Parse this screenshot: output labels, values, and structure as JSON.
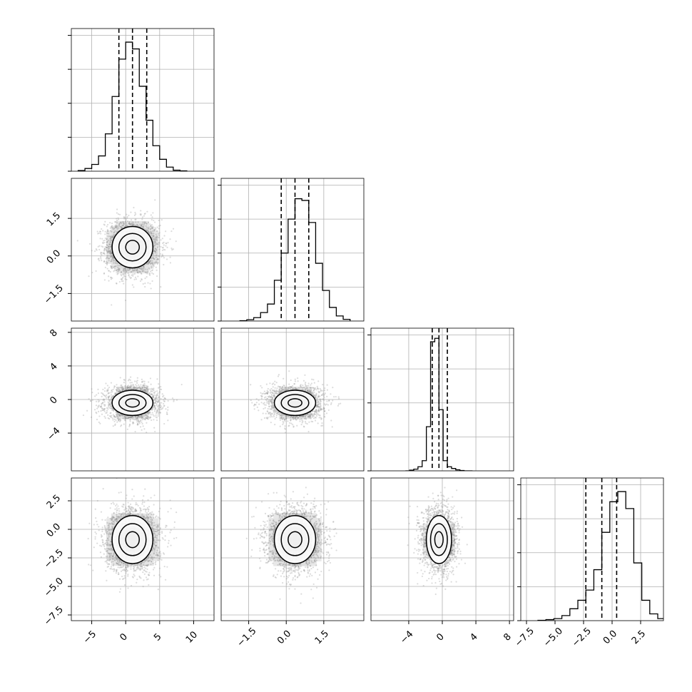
{
  "chart_data": {
    "type": "corner",
    "parameters": [
      {
        "range": [
          -8,
          13
        ],
        "ticks": [
          -5,
          0,
          5,
          10
        ],
        "tick_labels": [
          "−5",
          "0",
          "5",
          "10"
        ],
        "mean": 1.0,
        "sd": 2.0,
        "quantiles": [
          -1.0,
          1.0,
          3.1
        ],
        "hist_peak": 3.8,
        "hist_counts": [
          0.02,
          0.08,
          0.2,
          0.45,
          1.1,
          2.2,
          3.3,
          3.8,
          3.6,
          2.5,
          1.5,
          0.75,
          0.35,
          0.12,
          0.03,
          0.01
        ]
      },
      {
        "range": [
          -2.6,
          3.1
        ],
        "ticks": [
          -1.5,
          0.0,
          1.5
        ],
        "tick_labels": [
          "−1.5",
          "0.0",
          "1.5"
        ],
        "mean": 0.35,
        "sd": 0.55,
        "quantiles": [
          -0.2,
          0.35,
          0.9
        ],
        "hist_peak": 3.6,
        "hist_counts": [
          0.01,
          0.04,
          0.1,
          0.25,
          0.5,
          1.2,
          2.0,
          3.0,
          3.6,
          3.55,
          2.9,
          1.7,
          0.9,
          0.4,
          0.15,
          0.05
        ]
      },
      {
        "range": [
          -8.5,
          8.5
        ],
        "ticks": [
          -4,
          0,
          4,
          8
        ],
        "tick_labels": [
          "−4",
          "0",
          "4",
          "8"
        ],
        "mean": -0.4,
        "sd": 1.0,
        "quantiles": [
          -1.2,
          -0.4,
          0.6
        ],
        "hist_peak": 3.9,
        "hist_counts": [
          0,
          0.02,
          0.05,
          0.12,
          0.3,
          1.3,
          3.8,
          3.9,
          1.8,
          0.3,
          0.12,
          0.07,
          0.03,
          0.01,
          0,
          0
        ]
      },
      {
        "range": [
          -8.0,
          4.5
        ],
        "ticks": [
          -7.5,
          -5.0,
          -2.5,
          0.0,
          2.5
        ],
        "tick_labels": [
          "−7.5",
          "−5.0",
          "−2.5",
          "0.0",
          "2.5"
        ],
        "mean": -0.9,
        "sd": 1.4,
        "quantiles": [
          -2.3,
          -0.9,
          0.4
        ],
        "hist_peak": 3.8,
        "hist_counts": [
          0.01,
          0.03,
          0.06,
          0.15,
          0.35,
          0.6,
          0.9,
          1.5,
          2.6,
          3.5,
          3.8,
          3.3,
          1.7,
          0.6,
          0.2,
          0.06
        ]
      }
    ],
    "hist_y_ticks": [
      0,
      1,
      2,
      3,
      4
    ],
    "levels": [
      0.5,
      1.0,
      1.5
    ],
    "n_samples": 2200,
    "grid": true,
    "colors": {
      "lines": "#000000",
      "points": "#9a9a9a",
      "density": "#000000",
      "grid": "#b0b0b0"
    }
  }
}
